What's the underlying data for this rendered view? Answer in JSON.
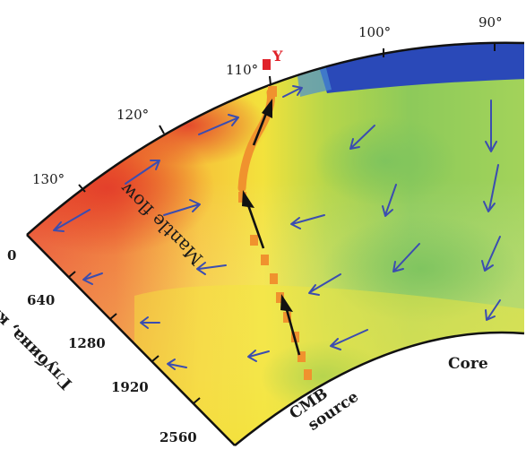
{
  "longitude_labels": [
    "130°",
    "120°",
    "110°",
    "100°",
    "90°"
  ],
  "depth_labels": [
    "0",
    "640",
    "1280",
    "1920",
    "2560"
  ],
  "depth_axis_title": "Глубина, км",
  "core_label": "Core",
  "mantle_flow_label": "Mantle flow",
  "cmb_label_line1": "CMB",
  "cmb_label_line2": "source",
  "marker_label": "Y",
  "colors": {
    "hot_red": "#e8412a",
    "orange": "#f39a2b",
    "yellow": "#f6e33a",
    "green": "#8ec95a",
    "blue": "#2a49b8",
    "arrow_blue": "#3b4db0",
    "marker_red": "#e0222a",
    "plume_orange": "#f0922e"
  }
}
